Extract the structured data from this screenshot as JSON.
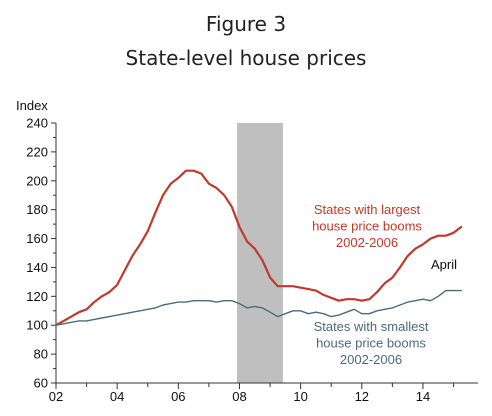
{
  "figure": {
    "number": "Figure 3",
    "title": "State-level house prices"
  },
  "chart_data": {
    "type": "line",
    "ylabel": "Index",
    "xlim": [
      2002,
      2015.8
    ],
    "ylim": [
      60,
      240
    ],
    "y_ticks": [
      60,
      80,
      100,
      120,
      140,
      160,
      180,
      200,
      220,
      240
    ],
    "x_ticks": [
      2002,
      2004,
      2006,
      2008,
      2010,
      2012,
      2014
    ],
    "x_tick_labels": [
      "02",
      "04",
      "06",
      "08",
      "10",
      "12",
      "14"
    ],
    "grid": false,
    "shaded_region": {
      "x_start": 2007.92,
      "x_end": 2009.42,
      "color": "#bfbfbf"
    },
    "series": [
      {
        "name": "States with largest house price booms 2002-2006",
        "label_lines": [
          "States with largest",
          "house price booms",
          "2002-2006"
        ],
        "color": "#c0392b",
        "x": [
          2002.0,
          2002.25,
          2002.5,
          2002.75,
          2003.0,
          2003.25,
          2003.5,
          2003.75,
          2004.0,
          2004.25,
          2004.5,
          2004.75,
          2005.0,
          2005.25,
          2005.5,
          2005.75,
          2006.0,
          2006.25,
          2006.5,
          2006.75,
          2007.0,
          2007.25,
          2007.5,
          2007.75,
          2008.0,
          2008.25,
          2008.5,
          2008.75,
          2009.0,
          2009.25,
          2009.5,
          2009.75,
          2010.0,
          2010.25,
          2010.5,
          2010.75,
          2011.0,
          2011.25,
          2011.5,
          2011.75,
          2012.0,
          2012.25,
          2012.5,
          2012.75,
          2013.0,
          2013.25,
          2013.5,
          2013.75,
          2014.0,
          2014.25,
          2014.5,
          2014.75,
          2015.0,
          2015.25
        ],
        "values": [
          100,
          103,
          106,
          109,
          111,
          116,
          120,
          123,
          128,
          138,
          148,
          156,
          165,
          178,
          190,
          198,
          202,
          207,
          207,
          205,
          198,
          195,
          190,
          182,
          168,
          158,
          153,
          145,
          133,
          127,
          127,
          127,
          126,
          125,
          124,
          121,
          119,
          117,
          118,
          118,
          117,
          118,
          123,
          129,
          133,
          140,
          148,
          153,
          156,
          160,
          162,
          162,
          164,
          168
        ]
      },
      {
        "name": "States with smallest house price booms 2002-2006",
        "label_lines": [
          "States with smallest",
          "house price booms",
          "2002-2006"
        ],
        "color": "#4a6b7c",
        "x": [
          2002.0,
          2002.25,
          2002.5,
          2002.75,
          2003.0,
          2003.25,
          2003.5,
          2003.75,
          2004.0,
          2004.25,
          2004.5,
          2004.75,
          2005.0,
          2005.25,
          2005.5,
          2005.75,
          2006.0,
          2006.25,
          2006.5,
          2006.75,
          2007.0,
          2007.25,
          2007.5,
          2007.75,
          2008.0,
          2008.25,
          2008.5,
          2008.75,
          2009.0,
          2009.25,
          2009.5,
          2009.75,
          2010.0,
          2010.25,
          2010.5,
          2010.75,
          2011.0,
          2011.25,
          2011.5,
          2011.75,
          2012.0,
          2012.25,
          2012.5,
          2012.75,
          2013.0,
          2013.25,
          2013.5,
          2013.75,
          2014.0,
          2014.25,
          2014.5,
          2014.75,
          2015.0,
          2015.25
        ],
        "values": [
          100,
          101,
          102,
          103,
          103,
          104,
          105,
          106,
          107,
          108,
          109,
          110,
          111,
          112,
          114,
          115,
          116,
          116,
          117,
          117,
          117,
          116,
          117,
          117,
          115,
          112,
          113,
          112,
          109,
          106,
          108,
          110,
          110,
          108,
          109,
          108,
          106,
          107,
          109,
          111,
          108,
          108,
          110,
          111,
          112,
          114,
          116,
          117,
          118,
          117,
          120,
          124,
          124,
          124
        ]
      }
    ],
    "annotations": [
      {
        "text": "April",
        "color": "#111111"
      }
    ]
  }
}
